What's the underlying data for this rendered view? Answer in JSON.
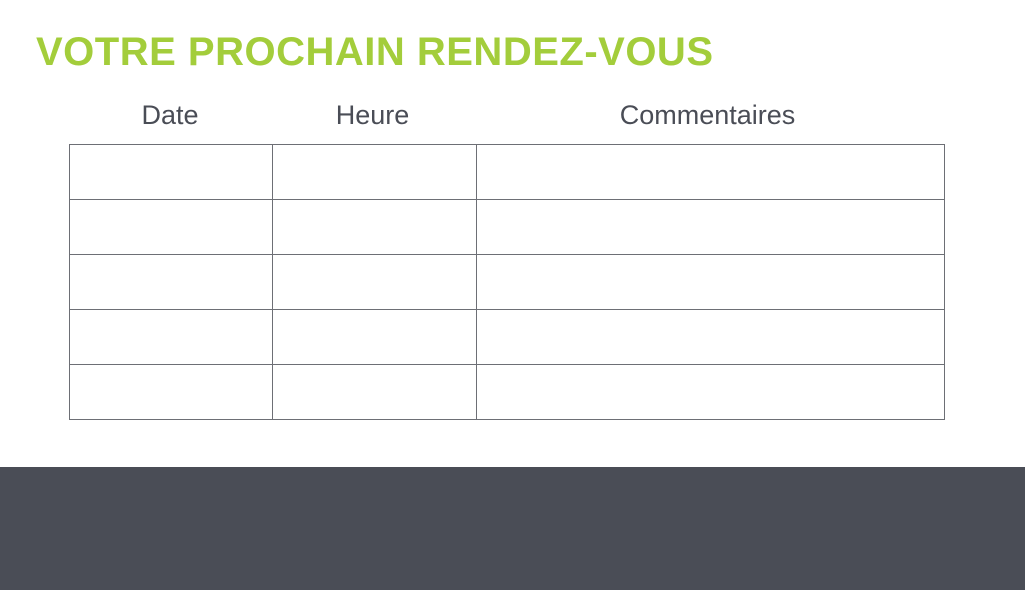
{
  "title": "VOTRE PROCHAIN RENDEZ-VOUS",
  "columns": [
    "Date",
    "Heure",
    "Commentaires"
  ],
  "row_count": 5,
  "colors": {
    "accent": "#a3cd3b",
    "text": "#4a4d56",
    "footer": "#4a4d56"
  }
}
